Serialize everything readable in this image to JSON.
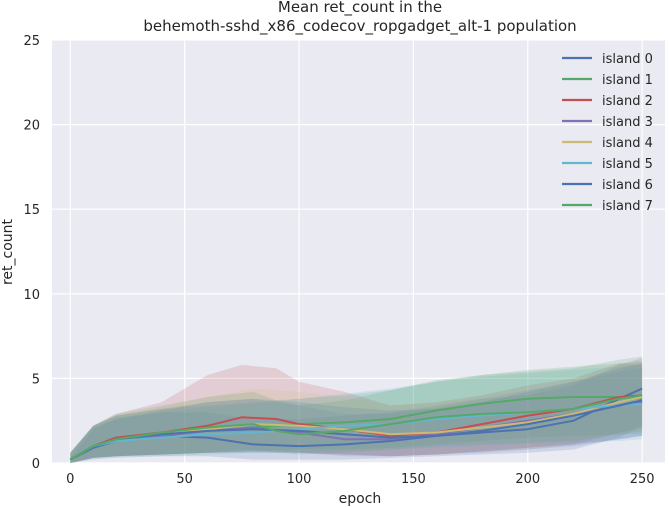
{
  "chart_data": {
    "type": "line",
    "title_lines": [
      "Mean ret_count in the",
      "behemoth-sshd_x86_codecov_ropgadget_alt-1 population"
    ],
    "xlabel": "epoch",
    "ylabel": "ret_count",
    "xlim": [
      -8,
      260
    ],
    "ylim": [
      0,
      25
    ],
    "xticks": [
      0,
      50,
      100,
      150,
      200,
      250
    ],
    "yticks": [
      0,
      5,
      10,
      15,
      20,
      25
    ],
    "grid": true,
    "legend_position": "top-right",
    "series": [
      {
        "name": "island 0",
        "color": "#4c72b0",
        "points": [
          [
            0,
            0.2
          ],
          [
            10,
            0.9
          ],
          [
            20,
            1.3
          ],
          [
            40,
            1.6
          ],
          [
            60,
            1.5
          ],
          [
            80,
            1.1
          ],
          [
            100,
            1.0
          ],
          [
            120,
            1.1
          ],
          [
            140,
            1.3
          ],
          [
            160,
            1.6
          ],
          [
            180,
            1.8
          ],
          [
            200,
            2.0
          ],
          [
            220,
            2.5
          ],
          [
            240,
            3.8
          ],
          [
            250,
            4.4
          ]
        ],
        "band": [
          [
            0,
            0.3
          ],
          [
            10,
            0.2,
            2.0
          ],
          [
            20,
            0.3,
            2.6
          ],
          [
            40,
            0.4,
            3.0
          ],
          [
            60,
            0.4,
            3.0
          ],
          [
            80,
            0.2,
            2.6
          ],
          [
            100,
            0.2,
            2.6
          ],
          [
            120,
            0.2,
            2.8
          ],
          [
            140,
            0.3,
            3.0
          ],
          [
            160,
            0.4,
            3.4
          ],
          [
            180,
            0.5,
            3.8
          ],
          [
            200,
            0.6,
            4.0
          ],
          [
            220,
            0.8,
            4.6
          ],
          [
            240,
            1.5,
            5.8
          ],
          [
            250,
            2.2,
            6.2
          ]
        ]
      },
      {
        "name": "island 1",
        "color": "#55a868",
        "points": [
          [
            0,
            0.2
          ],
          [
            10,
            1.0
          ],
          [
            20,
            1.4
          ],
          [
            40,
            1.7
          ],
          [
            60,
            1.9
          ],
          [
            80,
            2.1
          ],
          [
            100,
            2.3
          ],
          [
            120,
            2.4
          ],
          [
            140,
            2.6
          ],
          [
            160,
            3.1
          ],
          [
            180,
            3.5
          ],
          [
            200,
            3.8
          ],
          [
            220,
            3.9
          ],
          [
            240,
            3.9
          ],
          [
            250,
            3.8
          ]
        ],
        "band": [
          [
            0,
            0,
            0.6
          ],
          [
            10,
            0.3,
            2.2
          ],
          [
            20,
            0.4,
            2.8
          ],
          [
            40,
            0.5,
            3.2
          ],
          [
            60,
            0.6,
            3.4
          ],
          [
            80,
            0.7,
            3.6
          ],
          [
            100,
            0.8,
            3.8
          ],
          [
            120,
            0.8,
            4.0
          ],
          [
            140,
            0.9,
            4.3
          ],
          [
            160,
            1.1,
            4.8
          ],
          [
            180,
            1.3,
            5.2
          ],
          [
            200,
            1.5,
            5.5
          ],
          [
            220,
            1.6,
            5.7
          ],
          [
            240,
            1.7,
            5.9
          ],
          [
            250,
            1.7,
            5.8
          ]
        ]
      },
      {
        "name": "island 2",
        "color": "#c44e52",
        "points": [
          [
            0,
            0.2
          ],
          [
            10,
            1.0
          ],
          [
            20,
            1.5
          ],
          [
            40,
            1.8
          ],
          [
            60,
            2.2
          ],
          [
            75,
            2.7
          ],
          [
            90,
            2.6
          ],
          [
            100,
            2.3
          ],
          [
            120,
            2.0
          ],
          [
            140,
            1.6
          ],
          [
            160,
            1.8
          ],
          [
            180,
            2.3
          ],
          [
            200,
            2.8
          ],
          [
            220,
            3.2
          ],
          [
            240,
            3.9
          ],
          [
            250,
            4.0
          ]
        ],
        "band": [
          [
            0,
            0,
            0.6
          ],
          [
            10,
            0.3,
            2.2
          ],
          [
            20,
            0.4,
            2.9
          ],
          [
            40,
            0.5,
            3.6
          ],
          [
            60,
            0.6,
            5.2
          ],
          [
            75,
            0.8,
            5.8
          ],
          [
            90,
            0.7,
            5.6
          ],
          [
            100,
            0.6,
            4.8
          ],
          [
            120,
            0.5,
            4.2
          ],
          [
            140,
            0.4,
            3.4
          ],
          [
            160,
            0.5,
            3.6
          ],
          [
            180,
            0.7,
            4.0
          ],
          [
            200,
            0.9,
            4.6
          ],
          [
            220,
            1.1,
            5.0
          ],
          [
            240,
            1.8,
            5.9
          ],
          [
            250,
            2.1,
            6.0
          ]
        ]
      },
      {
        "name": "island 3",
        "color": "#8172b2",
        "points": [
          [
            0,
            0.2
          ],
          [
            10,
            1.0
          ],
          [
            20,
            1.3
          ],
          [
            40,
            1.6
          ],
          [
            60,
            1.9
          ],
          [
            80,
            2.1
          ],
          [
            100,
            1.8
          ],
          [
            120,
            1.4
          ],
          [
            140,
            1.4
          ],
          [
            160,
            1.7
          ],
          [
            180,
            2.1
          ],
          [
            200,
            2.5
          ],
          [
            220,
            2.9
          ],
          [
            240,
            3.4
          ],
          [
            250,
            3.6
          ]
        ],
        "band": [
          [
            0,
            0,
            0.6
          ],
          [
            10,
            0.3,
            2.1
          ],
          [
            20,
            0.4,
            2.6
          ],
          [
            40,
            0.5,
            3.1
          ],
          [
            60,
            0.6,
            3.6
          ],
          [
            80,
            0.7,
            3.8
          ],
          [
            100,
            0.6,
            3.4
          ],
          [
            120,
            0.4,
            2.9
          ],
          [
            140,
            0.4,
            2.9
          ],
          [
            160,
            0.5,
            3.3
          ],
          [
            180,
            0.7,
            3.8
          ],
          [
            200,
            0.9,
            4.3
          ],
          [
            220,
            1.1,
            4.8
          ],
          [
            240,
            1.4,
            5.4
          ],
          [
            250,
            1.6,
            5.6
          ]
        ]
      },
      {
        "name": "island 4",
        "color": "#ccb974",
        "points": [
          [
            0,
            0.2
          ],
          [
            10,
            1.0
          ],
          [
            20,
            1.4
          ],
          [
            40,
            1.7
          ],
          [
            60,
            2.0
          ],
          [
            80,
            2.3
          ],
          [
            100,
            2.2
          ],
          [
            120,
            2.0
          ],
          [
            140,
            1.7
          ],
          [
            160,
            1.8
          ],
          [
            180,
            2.1
          ],
          [
            200,
            2.4
          ],
          [
            220,
            2.9
          ],
          [
            240,
            3.6
          ],
          [
            250,
            3.9
          ]
        ],
        "band": [
          [
            0,
            0,
            0.6
          ],
          [
            10,
            0.3,
            2.2
          ],
          [
            20,
            0.4,
            2.8
          ],
          [
            40,
            0.5,
            3.3
          ],
          [
            60,
            0.6,
            3.9
          ],
          [
            80,
            0.7,
            4.4
          ],
          [
            100,
            0.7,
            4.2
          ],
          [
            120,
            0.6,
            3.9
          ],
          [
            140,
            0.5,
            3.4
          ],
          [
            160,
            0.5,
            3.5
          ],
          [
            180,
            0.7,
            3.9
          ],
          [
            200,
            0.8,
            4.3
          ],
          [
            220,
            1.1,
            4.9
          ],
          [
            240,
            1.6,
            5.7
          ],
          [
            250,
            1.9,
            6.0
          ]
        ]
      },
      {
        "name": "island 5",
        "color": "#64b5cd",
        "points": [
          [
            0,
            0.2
          ],
          [
            10,
            1.0
          ],
          [
            20,
            1.3
          ],
          [
            40,
            1.5
          ],
          [
            60,
            1.7
          ],
          [
            80,
            1.8
          ],
          [
            100,
            2.0
          ],
          [
            120,
            2.2
          ],
          [
            140,
            2.3
          ],
          [
            160,
            2.6
          ],
          [
            180,
            2.8
          ],
          [
            200,
            3.0
          ],
          [
            220,
            3.2
          ],
          [
            240,
            3.4
          ],
          [
            250,
            3.5
          ]
        ],
        "band": [
          [
            0,
            0,
            0.6
          ],
          [
            10,
            0.3,
            2.2
          ],
          [
            20,
            0.4,
            2.7
          ],
          [
            40,
            0.4,
            3.0
          ],
          [
            60,
            0.5,
            3.3
          ],
          [
            80,
            0.6,
            3.5
          ],
          [
            100,
            0.6,
            3.8
          ],
          [
            120,
            0.7,
            4.1
          ],
          [
            140,
            0.8,
            4.4
          ],
          [
            160,
            0.9,
            4.8
          ],
          [
            180,
            1.0,
            5.1
          ],
          [
            200,
            1.1,
            5.3
          ],
          [
            220,
            1.2,
            5.5
          ],
          [
            240,
            1.3,
            5.7
          ],
          [
            250,
            1.4,
            5.8
          ]
        ]
      },
      {
        "name": "island 6",
        "color": "#4c72b0",
        "points": [
          [
            0,
            0.2
          ],
          [
            10,
            1.0
          ],
          [
            20,
            1.4
          ],
          [
            40,
            1.7
          ],
          [
            60,
            1.9
          ],
          [
            80,
            2.0
          ],
          [
            100,
            1.9
          ],
          [
            120,
            1.7
          ],
          [
            140,
            1.5
          ],
          [
            160,
            1.6
          ],
          [
            180,
            1.9
          ],
          [
            200,
            2.3
          ],
          [
            220,
            2.8
          ],
          [
            240,
            3.4
          ],
          [
            250,
            3.7
          ]
        ],
        "band": [
          [
            0,
            0,
            0.6
          ],
          [
            10,
            0.3,
            2.2
          ],
          [
            20,
            0.4,
            2.8
          ],
          [
            40,
            0.5,
            3.2
          ],
          [
            60,
            0.6,
            3.6
          ],
          [
            80,
            0.6,
            3.8
          ],
          [
            100,
            0.6,
            3.6
          ],
          [
            120,
            0.5,
            3.3
          ],
          [
            140,
            0.4,
            3.1
          ],
          [
            160,
            0.5,
            3.2
          ],
          [
            180,
            0.6,
            3.6
          ],
          [
            200,
            0.8,
            4.2
          ],
          [
            220,
            1.0,
            4.8
          ],
          [
            240,
            1.4,
            5.6
          ],
          [
            250,
            1.6,
            5.9
          ]
        ]
      },
      {
        "name": "island 7",
        "color": "#55a868",
        "points": [
          [
            0,
            0.2
          ],
          [
            10,
            1.0
          ],
          [
            20,
            1.4
          ],
          [
            40,
            1.8
          ],
          [
            60,
            2.1
          ],
          [
            80,
            2.3
          ],
          [
            90,
            1.9
          ],
          [
            100,
            1.7
          ],
          [
            120,
            1.9
          ],
          [
            140,
            2.3
          ],
          [
            160,
            2.7
          ],
          [
            180,
            2.9
          ],
          [
            200,
            3.0
          ],
          [
            220,
            3.2
          ],
          [
            240,
            3.8
          ],
          [
            250,
            4.0
          ]
        ],
        "band": [
          [
            0,
            0,
            0.6
          ],
          [
            10,
            0.3,
            2.2
          ],
          [
            20,
            0.4,
            2.9
          ],
          [
            40,
            0.5,
            3.4
          ],
          [
            60,
            0.6,
            3.9
          ],
          [
            80,
            0.7,
            4.2
          ],
          [
            90,
            0.6,
            3.7
          ],
          [
            100,
            0.5,
            3.4
          ],
          [
            120,
            0.6,
            3.7
          ],
          [
            140,
            0.8,
            4.3
          ],
          [
            160,
            1.0,
            4.9
          ],
          [
            180,
            1.1,
            5.2
          ],
          [
            200,
            1.2,
            5.4
          ],
          [
            220,
            1.3,
            5.6
          ],
          [
            240,
            1.7,
            6.1
          ],
          [
            250,
            1.9,
            6.3
          ]
        ]
      }
    ]
  }
}
